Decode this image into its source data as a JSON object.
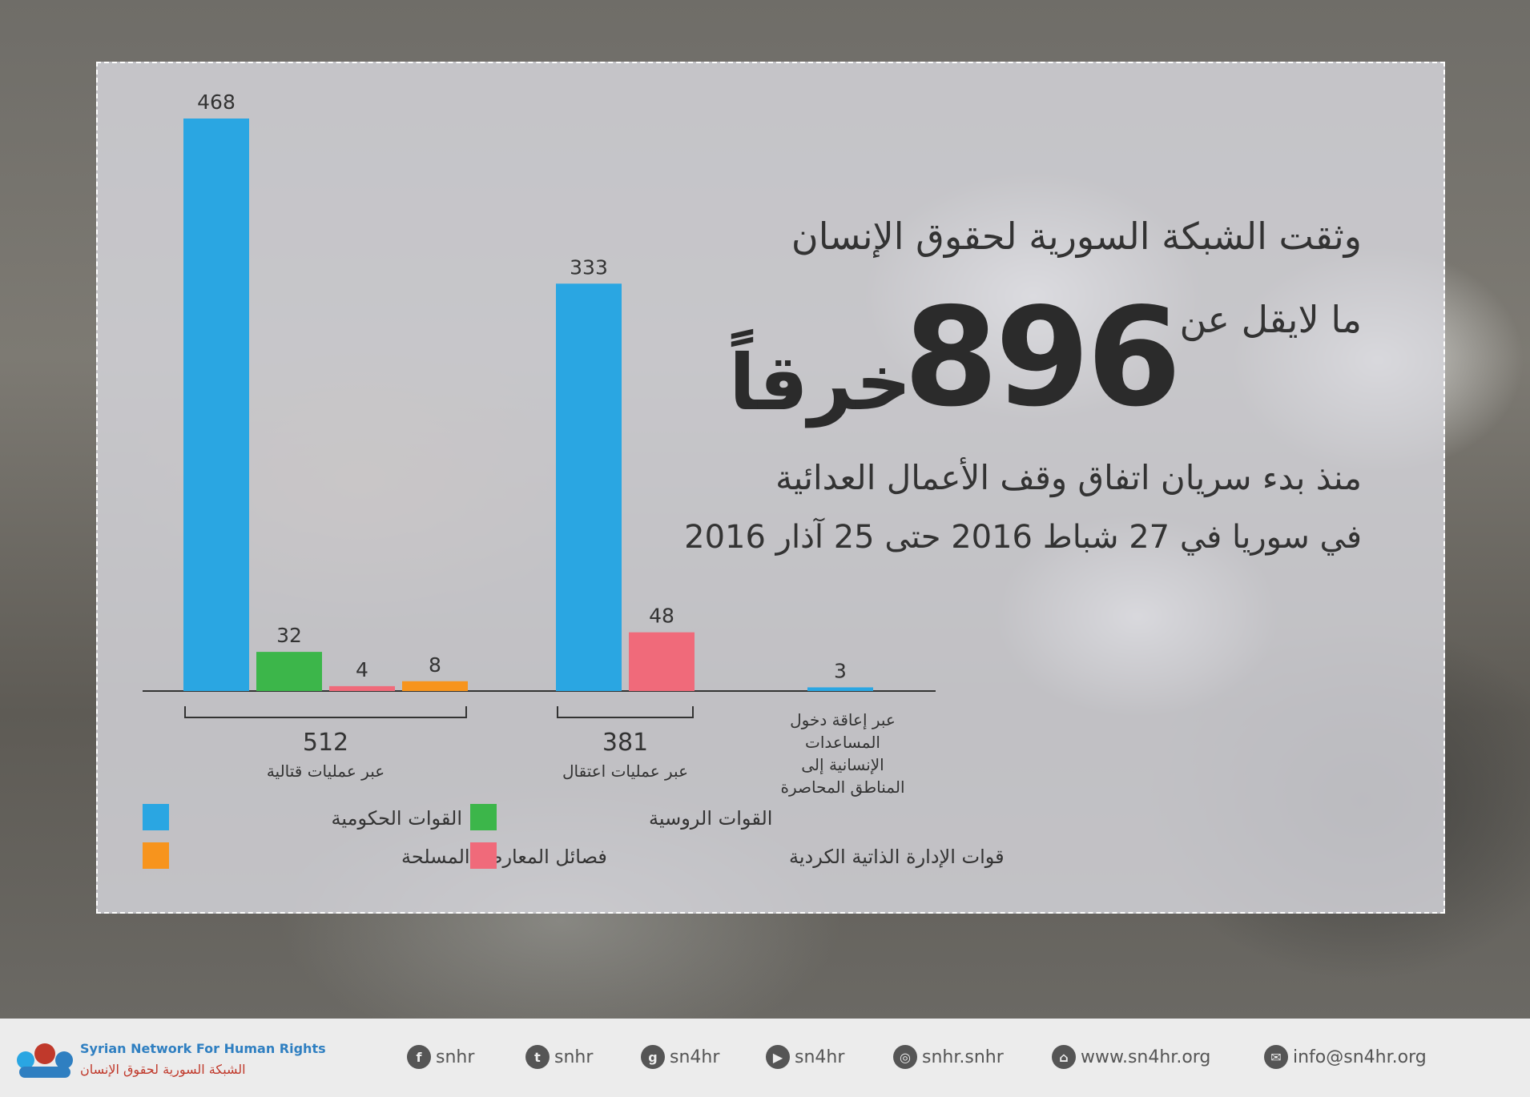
{
  "headline": {
    "line1": "وثقت الشبكة السورية لحقوق الإنسان",
    "line2": "ما لايقل عن",
    "total": "896",
    "total_word": "خرقاً",
    "line3": "منذ بدء سريان اتفاق وقف الأعمال العدائية",
    "line4": "في سوريا في 27 شباط 2016 حتى 25 آذار 2016"
  },
  "chart_data": {
    "type": "bar",
    "groups": [
      {
        "total": "512",
        "label": [
          "عبر عمليات قتالية"
        ],
        "bars": [
          {
            "series": "القوات الحكومية",
            "value": 468
          },
          {
            "series": "القوات الروسية",
            "value": 32
          },
          {
            "series": "قوات الإدارة الذاتية الكردية",
            "value": 4
          },
          {
            "series": "فصائل المعارضة المسلحة",
            "value": 8
          }
        ]
      },
      {
        "total": "381",
        "label": [
          "عبر عمليات اعتقال"
        ],
        "bars": [
          {
            "series": "القوات الحكومية",
            "value": 333
          },
          {
            "series": "قوات الإدارة الذاتية الكردية",
            "value": 48
          }
        ]
      },
      {
        "total": "",
        "label": [
          "عبر إعاقة دخول",
          "المساعدات",
          "الإنسانية إلى",
          "المناطق المحاصرة"
        ],
        "bars": [
          {
            "series": "القوات الحكومية",
            "value": 3
          }
        ]
      }
    ],
    "legend": [
      {
        "name": "القوات الحكومية",
        "color": "#2aa6e2"
      },
      {
        "name": "القوات الروسية",
        "color": "#3cb64a"
      },
      {
        "name": "فصائل المعارضة المسلحة",
        "color": "#f7941d"
      },
      {
        "name": "قوات الإدارة الذاتية الكردية",
        "color": "#f06a7a"
      }
    ]
  },
  "footer": {
    "logo_en": "Syrian Network For Human Rights",
    "logo_ar": "الشبكة السورية لحقوق الإنسان",
    "links": [
      {
        "icon": "facebook-icon",
        "glyph": "f",
        "text": "snhr"
      },
      {
        "icon": "twitter-icon",
        "glyph": "t",
        "text": "snhr"
      },
      {
        "icon": "googleplus-icon",
        "glyph": "g",
        "text": "sn4hr"
      },
      {
        "icon": "youtube-icon",
        "glyph": "▶",
        "text": "sn4hr"
      },
      {
        "icon": "instagram-icon",
        "glyph": "◎",
        "text": "snhr.snhr"
      },
      {
        "icon": "home-icon",
        "glyph": "⌂",
        "text": "www.sn4hr.org"
      },
      {
        "icon": "email-icon",
        "glyph": "✉",
        "text": "info@sn4hr.org"
      }
    ]
  }
}
